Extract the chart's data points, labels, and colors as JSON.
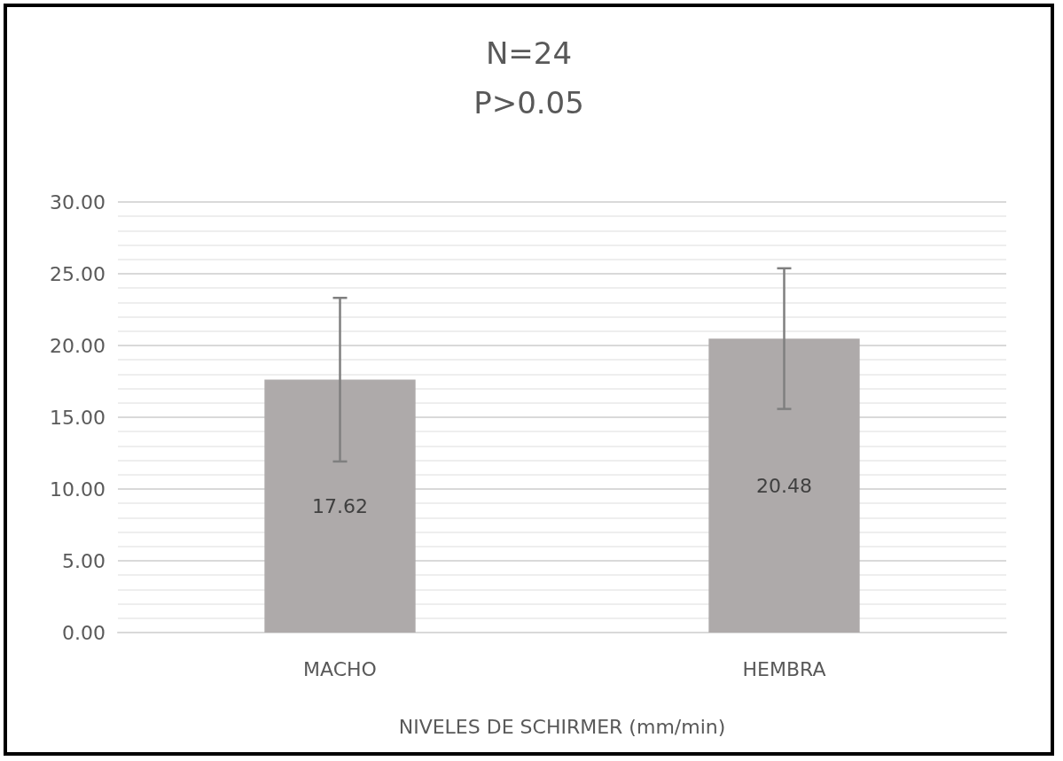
{
  "chart_data": {
    "type": "bar",
    "title": "N=24",
    "subtitle": "P>0.05",
    "xlabel": "NIVELES DE SCHIRMER (mm/min)",
    "categories": [
      "MACHO",
      "HEMBRA"
    ],
    "values": [
      17.62,
      20.48
    ],
    "errors": [
      5.7,
      4.9
    ],
    "color": "#aeaaaa",
    "data_labels": true,
    "ylim": [
      0,
      30
    ],
    "yticks": [
      {
        "value": 0,
        "label": "0.00"
      },
      {
        "value": 5,
        "label": "5.00"
      },
      {
        "value": 10,
        "label": "10.00"
      },
      {
        "value": 15,
        "label": "15.00"
      },
      {
        "value": 20,
        "label": "20.00"
      },
      {
        "value": 25,
        "label": "25.00"
      },
      {
        "value": 30,
        "label": "30.00"
      }
    ],
    "grid": true
  }
}
